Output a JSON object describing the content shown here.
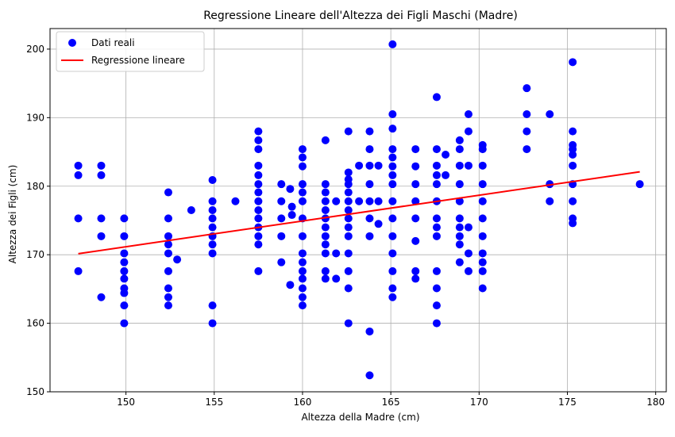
{
  "chart_data": {
    "type": "scatter",
    "title": "Regressione Lineare dell'Altezza dei Figli Maschi (Madre)",
    "xlabel": "Altezza della Madre (cm)",
    "ylabel": "Altezza dei Figli (cm)",
    "xlim": [
      145.7,
      180.6
    ],
    "ylim": [
      150,
      203
    ],
    "xticks": [
      150,
      155,
      160,
      165,
      170,
      175,
      180
    ],
    "yticks": [
      150,
      160,
      170,
      180,
      190,
      200
    ],
    "grid": true,
    "legend_position": "top-left",
    "legend": [
      {
        "label": "Dati reali",
        "kind": "marker",
        "color": "#0000ff"
      },
      {
        "label": "Regressione lineare",
        "kind": "line",
        "color": "#ff0000"
      }
    ],
    "series": [
      {
        "name": "Dati reali",
        "kind": "scatter",
        "color": "#0000ff",
        "points": [
          [
            147.3,
            183.0
          ],
          [
            147.3,
            181.6
          ],
          [
            147.3,
            175.3
          ],
          [
            147.3,
            167.6
          ],
          [
            148.6,
            183.0
          ],
          [
            148.6,
            181.6
          ],
          [
            148.6,
            175.3
          ],
          [
            148.6,
            172.7
          ],
          [
            148.6,
            163.8
          ],
          [
            149.9,
            175.3
          ],
          [
            149.9,
            172.7
          ],
          [
            149.9,
            170.2
          ],
          [
            149.9,
            168.9
          ],
          [
            149.9,
            167.6
          ],
          [
            149.9,
            166.5
          ],
          [
            149.9,
            165.1
          ],
          [
            149.9,
            164.4
          ],
          [
            149.9,
            162.6
          ],
          [
            149.9,
            160.0
          ],
          [
            152.4,
            179.1
          ],
          [
            152.4,
            175.3
          ],
          [
            152.4,
            172.7
          ],
          [
            152.4,
            171.5
          ],
          [
            152.4,
            170.2
          ],
          [
            152.4,
            167.6
          ],
          [
            152.4,
            165.1
          ],
          [
            152.4,
            163.8
          ],
          [
            152.4,
            162.6
          ],
          [
            152.9,
            169.3
          ],
          [
            153.7,
            176.5
          ],
          [
            154.9,
            180.9
          ],
          [
            154.9,
            177.8
          ],
          [
            154.9,
            176.5
          ],
          [
            154.9,
            175.3
          ],
          [
            154.9,
            174.0
          ],
          [
            154.9,
            172.7
          ],
          [
            154.9,
            171.5
          ],
          [
            154.9,
            170.2
          ],
          [
            154.9,
            162.6
          ],
          [
            154.9,
            160.0
          ],
          [
            156.2,
            177.8
          ],
          [
            157.5,
            188.0
          ],
          [
            157.5,
            186.7
          ],
          [
            157.5,
            185.4
          ],
          [
            157.5,
            183.0
          ],
          [
            157.5,
            181.6
          ],
          [
            157.5,
            180.3
          ],
          [
            157.5,
            179.1
          ],
          [
            157.5,
            177.8
          ],
          [
            157.5,
            176.5
          ],
          [
            157.5,
            175.3
          ],
          [
            157.5,
            174.0
          ],
          [
            157.5,
            172.7
          ],
          [
            157.5,
            171.5
          ],
          [
            157.5,
            167.6
          ],
          [
            158.8,
            180.3
          ],
          [
            158.8,
            177.8
          ],
          [
            158.8,
            175.3
          ],
          [
            158.8,
            172.7
          ],
          [
            158.8,
            168.9
          ],
          [
            159.3,
            179.6
          ],
          [
            159.4,
            177.0
          ],
          [
            159.4,
            175.8
          ],
          [
            159.3,
            165.6
          ],
          [
            160.0,
            185.4
          ],
          [
            160.0,
            184.2
          ],
          [
            160.0,
            182.9
          ],
          [
            160.0,
            180.3
          ],
          [
            160.0,
            179.1
          ],
          [
            160.0,
            177.8
          ],
          [
            160.0,
            175.3
          ],
          [
            160.0,
            172.7
          ],
          [
            160.0,
            170.2
          ],
          [
            160.0,
            168.9
          ],
          [
            160.0,
            167.6
          ],
          [
            160.0,
            166.5
          ],
          [
            160.0,
            165.1
          ],
          [
            160.0,
            163.8
          ],
          [
            160.0,
            162.6
          ],
          [
            161.3,
            186.7
          ],
          [
            161.3,
            180.3
          ],
          [
            161.3,
            179.1
          ],
          [
            161.3,
            177.8
          ],
          [
            161.3,
            176.5
          ],
          [
            161.3,
            175.3
          ],
          [
            161.3,
            174.0
          ],
          [
            161.3,
            172.7
          ],
          [
            161.3,
            171.5
          ],
          [
            161.3,
            170.2
          ],
          [
            161.3,
            167.6
          ],
          [
            161.3,
            166.5
          ],
          [
            161.9,
            177.8
          ],
          [
            161.9,
            170.2
          ],
          [
            161.9,
            166.5
          ],
          [
            162.6,
            188.0
          ],
          [
            162.6,
            182.0
          ],
          [
            162.6,
            181.0
          ],
          [
            162.6,
            180.3
          ],
          [
            162.6,
            179.1
          ],
          [
            162.6,
            177.8
          ],
          [
            162.6,
            176.5
          ],
          [
            162.6,
            175.3
          ],
          [
            162.6,
            174.0
          ],
          [
            162.6,
            172.7
          ],
          [
            162.6,
            170.2
          ],
          [
            162.6,
            167.6
          ],
          [
            162.6,
            165.1
          ],
          [
            162.6,
            160.0
          ],
          [
            163.2,
            183.0
          ],
          [
            163.2,
            177.8
          ],
          [
            163.8,
            188.0
          ],
          [
            163.8,
            185.4
          ],
          [
            163.8,
            183.0
          ],
          [
            163.8,
            180.3
          ],
          [
            163.8,
            177.8
          ],
          [
            163.8,
            175.3
          ],
          [
            163.8,
            172.7
          ],
          [
            163.8,
            158.8
          ],
          [
            163.8,
            152.4
          ],
          [
            164.3,
            183.0
          ],
          [
            164.3,
            177.8
          ],
          [
            164.3,
            174.5
          ],
          [
            165.1,
            200.7
          ],
          [
            165.1,
            190.5
          ],
          [
            165.1,
            188.4
          ],
          [
            165.1,
            185.4
          ],
          [
            165.1,
            184.2
          ],
          [
            165.1,
            182.9
          ],
          [
            165.1,
            181.6
          ],
          [
            165.1,
            180.3
          ],
          [
            165.1,
            177.8
          ],
          [
            165.1,
            175.3
          ],
          [
            165.1,
            172.7
          ],
          [
            165.1,
            170.2
          ],
          [
            165.1,
            167.6
          ],
          [
            165.1,
            165.1
          ],
          [
            165.1,
            163.8
          ],
          [
            166.4,
            185.4
          ],
          [
            166.4,
            182.9
          ],
          [
            166.4,
            180.3
          ],
          [
            166.4,
            177.8
          ],
          [
            166.4,
            175.3
          ],
          [
            166.4,
            172.0
          ],
          [
            166.4,
            167.6
          ],
          [
            166.4,
            166.5
          ],
          [
            167.6,
            193.0
          ],
          [
            167.6,
            185.4
          ],
          [
            167.6,
            183.0
          ],
          [
            167.6,
            181.6
          ],
          [
            167.6,
            180.3
          ],
          [
            167.6,
            177.8
          ],
          [
            167.6,
            175.3
          ],
          [
            167.6,
            174.0
          ],
          [
            167.6,
            172.7
          ],
          [
            167.6,
            167.6
          ],
          [
            167.6,
            165.1
          ],
          [
            167.6,
            162.6
          ],
          [
            167.6,
            160.0
          ],
          [
            168.1,
            184.6
          ],
          [
            168.1,
            181.6
          ],
          [
            168.9,
            186.7
          ],
          [
            168.9,
            185.4
          ],
          [
            168.9,
            183.0
          ],
          [
            168.9,
            180.3
          ],
          [
            168.9,
            177.8
          ],
          [
            168.9,
            175.3
          ],
          [
            168.9,
            174.0
          ],
          [
            168.9,
            172.7
          ],
          [
            168.9,
            171.5
          ],
          [
            168.9,
            168.9
          ],
          [
            169.4,
            190.5
          ],
          [
            169.4,
            188.0
          ],
          [
            169.4,
            183.0
          ],
          [
            169.4,
            174.0
          ],
          [
            169.4,
            170.2
          ],
          [
            169.4,
            167.6
          ],
          [
            170.2,
            186.0
          ],
          [
            170.2,
            185.4
          ],
          [
            170.2,
            183.0
          ],
          [
            170.2,
            180.3
          ],
          [
            170.2,
            177.8
          ],
          [
            170.2,
            175.3
          ],
          [
            170.2,
            172.7
          ],
          [
            170.2,
            170.2
          ],
          [
            170.2,
            168.9
          ],
          [
            170.2,
            167.6
          ],
          [
            170.2,
            165.1
          ],
          [
            172.7,
            194.3
          ],
          [
            172.7,
            190.5
          ],
          [
            172.7,
            188.0
          ],
          [
            172.7,
            185.4
          ],
          [
            174.0,
            190.5
          ],
          [
            174.0,
            180.3
          ],
          [
            174.0,
            177.8
          ],
          [
            175.3,
            198.1
          ],
          [
            175.3,
            188.0
          ],
          [
            175.3,
            186.0
          ],
          [
            175.3,
            185.4
          ],
          [
            175.3,
            184.6
          ],
          [
            175.3,
            183.0
          ],
          [
            175.3,
            180.3
          ],
          [
            175.3,
            177.8
          ],
          [
            175.3,
            175.3
          ],
          [
            175.3,
            174.6
          ],
          [
            179.1,
            180.3
          ]
        ]
      },
      {
        "name": "Regressione lineare",
        "kind": "line",
        "color": "#ff0000",
        "points": [
          [
            147.3,
            170.15
          ],
          [
            179.1,
            182.1
          ]
        ]
      }
    ]
  }
}
